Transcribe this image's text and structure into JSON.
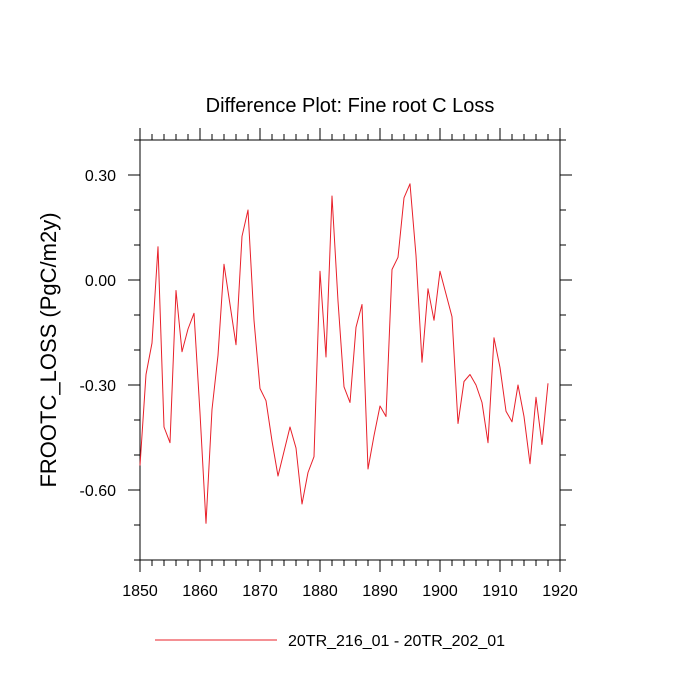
{
  "chart_data": {
    "type": "line",
    "title": "Difference Plot: Fine root C Loss",
    "ylabel": "FROOTC_LOSS  (PgC/m2y)",
    "xlabel": "",
    "xlim": [
      1850,
      1920
    ],
    "ylim": [
      -0.8,
      0.4
    ],
    "x_ticks": [
      1850,
      1860,
      1870,
      1880,
      1890,
      1900,
      1910,
      1920
    ],
    "x_tick_labels": [
      "1850",
      "1860",
      "1870",
      "1880",
      "1890",
      "1900",
      "1910",
      "1920"
    ],
    "y_ticks": [
      0.3,
      0.0,
      -0.3,
      -0.6
    ],
    "y_tick_labels": [
      "0.30",
      "0.00",
      "-0.30",
      "-0.60"
    ],
    "grid": false,
    "legend": "bottom-center",
    "series": [
      {
        "name": "20TR_216_01 - 20TR_202_01",
        "color": "#e8202a",
        "x": [
          1850,
          1851,
          1852,
          1853,
          1854,
          1855,
          1856,
          1857,
          1858,
          1859,
          1860,
          1861,
          1862,
          1863,
          1864,
          1865,
          1866,
          1867,
          1868,
          1869,
          1870,
          1871,
          1872,
          1873,
          1874,
          1875,
          1876,
          1877,
          1878,
          1879,
          1880,
          1881,
          1882,
          1883,
          1884,
          1885,
          1886,
          1887,
          1888,
          1889,
          1890,
          1891,
          1892,
          1893,
          1894,
          1895,
          1896,
          1897,
          1898,
          1899,
          1900,
          1901,
          1902,
          1903,
          1904,
          1905,
          1906,
          1907,
          1908,
          1909,
          1910,
          1911,
          1912,
          1913,
          1914,
          1915,
          1916,
          1917,
          1918
        ],
        "values": [
          -0.53,
          -0.27,
          -0.18,
          0.095,
          -0.42,
          -0.465,
          -0.03,
          -0.205,
          -0.14,
          -0.095,
          -0.38,
          -0.695,
          -0.37,
          -0.215,
          0.045,
          -0.07,
          -0.185,
          0.125,
          0.2,
          -0.115,
          -0.31,
          -0.345,
          -0.46,
          -0.56,
          -0.49,
          -0.42,
          -0.48,
          -0.64,
          -0.55,
          -0.505,
          0.025,
          -0.22,
          0.24,
          -0.06,
          -0.305,
          -0.35,
          -0.135,
          -0.07,
          -0.54,
          -0.445,
          -0.36,
          -0.39,
          0.03,
          0.065,
          0.235,
          0.275,
          0.07,
          -0.235,
          -0.025,
          -0.115,
          0.025,
          -0.04,
          -0.105,
          -0.41,
          -0.29,
          -0.27,
          -0.3,
          -0.35,
          -0.465,
          -0.165,
          -0.25,
          -0.375,
          -0.405,
          -0.3,
          -0.39,
          -0.525,
          -0.335,
          -0.47,
          -0.295
        ]
      }
    ]
  }
}
